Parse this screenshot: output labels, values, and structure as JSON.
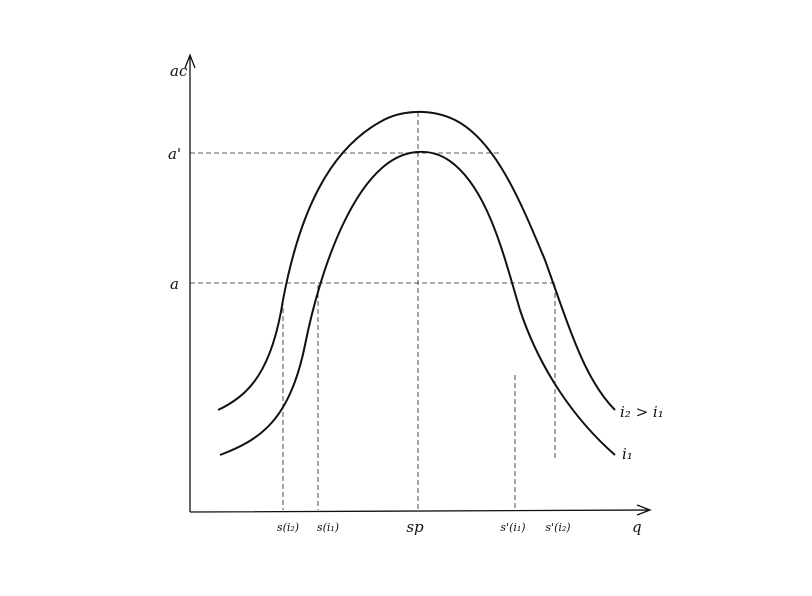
{
  "axis_labels": {
    "y": "ac",
    "x": "q"
  },
  "y_marks": [
    "a'",
    "a"
  ],
  "x_marks": [
    "s(i₂)",
    "s(i₁)",
    "sp",
    "s'(i₁)",
    "s'(i₂)"
  ],
  "curves": [
    "i₂ > i₁",
    "i₁"
  ]
}
